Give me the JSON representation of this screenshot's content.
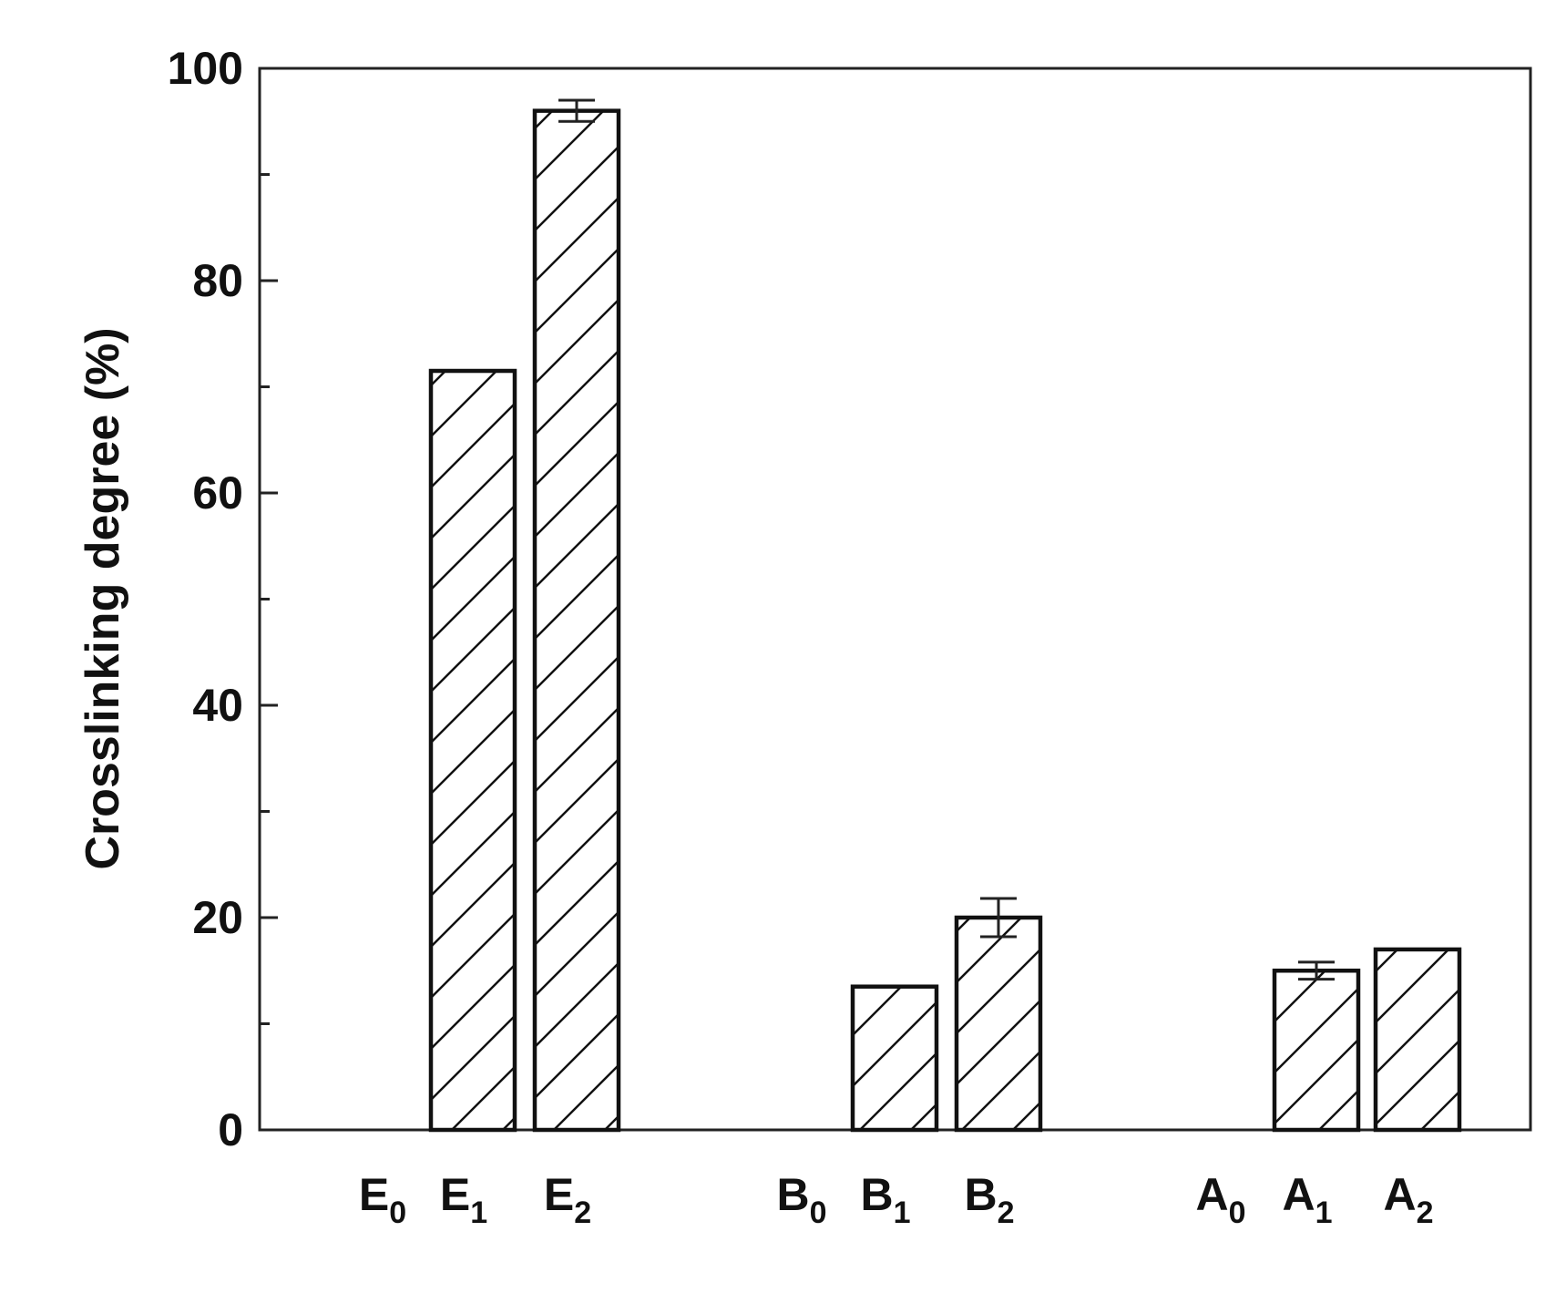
{
  "chart_data": {
    "type": "bar",
    "title": "",
    "xlabel": "",
    "ylabel": "Crosslinking degree (%)",
    "ylim": [
      0,
      100
    ],
    "yticks": [
      "0",
      "20",
      "40",
      "60",
      "80",
      "100"
    ],
    "grid": false,
    "fill_pattern": "diagonal-hatch",
    "colors": {
      "bar_fill": "#ffffff",
      "bar_stroke": "#111111",
      "axis": "#222222"
    },
    "categories": [
      {
        "letter": "E",
        "sub": "0"
      },
      {
        "letter": "E",
        "sub": "1"
      },
      {
        "letter": "E",
        "sub": "2"
      },
      {
        "letter": "B",
        "sub": "0"
      },
      {
        "letter": "B",
        "sub": "1"
      },
      {
        "letter": "B",
        "sub": "2"
      },
      {
        "letter": "A",
        "sub": "0"
      },
      {
        "letter": "A",
        "sub": "1"
      },
      {
        "letter": "A",
        "sub": "2"
      }
    ],
    "values": [
      0,
      71.5,
      96,
      0,
      13.5,
      20,
      0,
      15,
      17
    ],
    "errors": [
      0,
      0,
      1,
      0,
      0,
      1.8,
      0,
      0.8,
      0
    ]
  }
}
